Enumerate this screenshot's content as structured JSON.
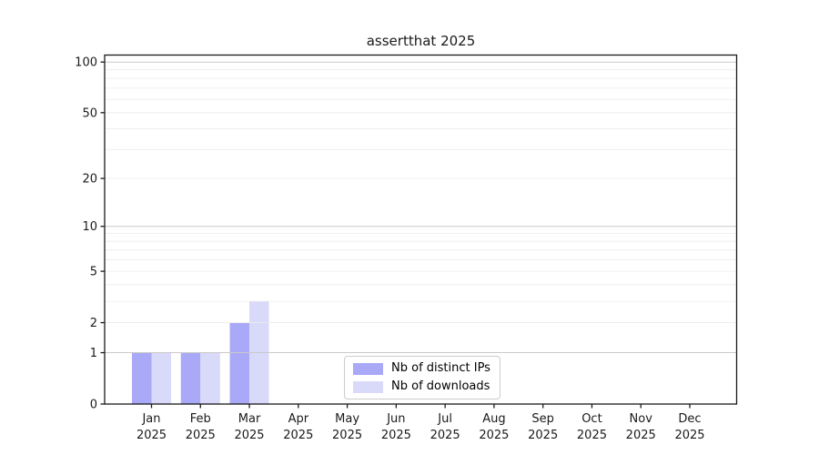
{
  "title": "assertthat 2025",
  "colors": {
    "background": "#ffffff",
    "axis": "#1a1a1a",
    "grid_major": "#c9c9c9",
    "grid_minor": "#ececec",
    "series_distinct_ips": "#a9a9f8",
    "series_downloads": "#d9d9fa",
    "legend_border": "#cccccc"
  },
  "chart_data": {
    "type": "bar",
    "title": "assertthat 2025",
    "categories": [
      "Jan",
      "Feb",
      "Mar",
      "Apr",
      "May",
      "Jun",
      "Jul",
      "Aug",
      "Sep",
      "Oct",
      "Nov",
      "Dec"
    ],
    "category_year": "2025",
    "series": [
      {
        "name": "Nb of distinct IPs",
        "color": "#a9a9f8",
        "values": [
          1,
          1,
          2,
          0,
          0,
          0,
          0,
          0,
          0,
          0,
          0,
          0
        ]
      },
      {
        "name": "Nb of downloads",
        "color": "#d9d9fa",
        "values": [
          1,
          1,
          3,
          0,
          0,
          0,
          0,
          0,
          0,
          0,
          0,
          0
        ]
      }
    ],
    "xlabel": "",
    "ylabel": "",
    "yscale": "log1p",
    "ymin": 0,
    "ymax_effective": 110,
    "yticks": [
      0,
      1,
      2,
      5,
      10,
      20,
      50,
      100
    ],
    "major_grid_values": [
      1,
      10,
      100
    ],
    "minor_grid_values": [
      2,
      3,
      4,
      5,
      6,
      7,
      8,
      9,
      20,
      30,
      40,
      50,
      60,
      70,
      80,
      90
    ],
    "grid": true,
    "legend_position": "lower center"
  },
  "legend": {
    "items": [
      {
        "label": "Nb of distinct IPs"
      },
      {
        "label": "Nb of downloads"
      }
    ]
  }
}
